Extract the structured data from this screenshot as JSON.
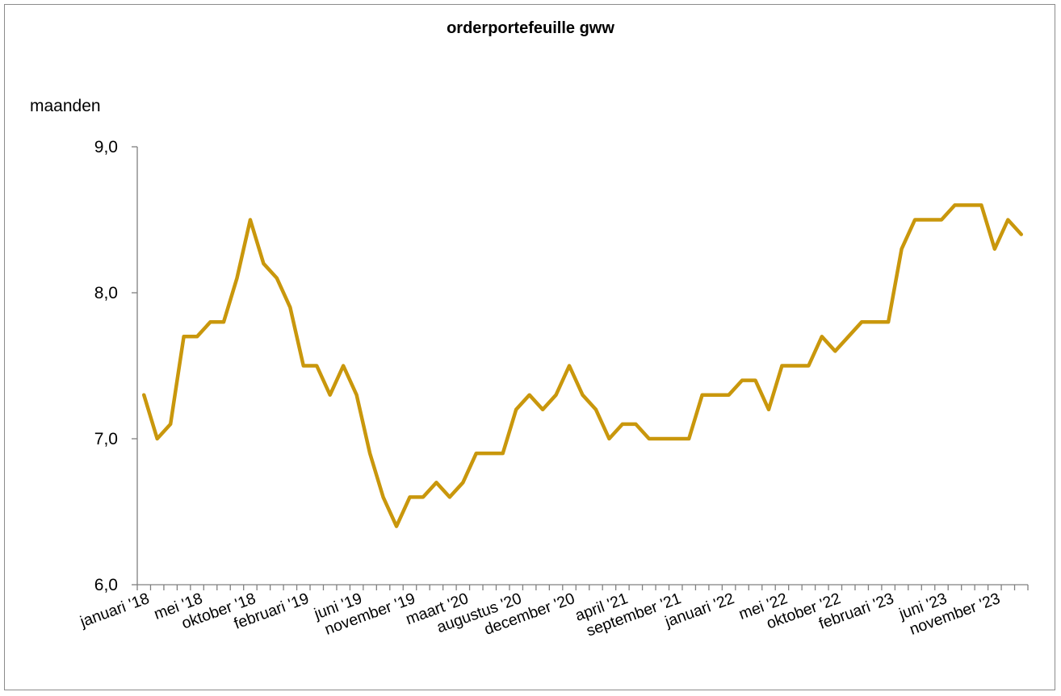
{
  "chart_data": {
    "type": "line",
    "title": "orderportefeuille gww",
    "ylabel": "maanden",
    "xlabel": "",
    "ylim": [
      6.0,
      9.0
    ],
    "yticks": [
      "6,0",
      "7,0",
      "8,0",
      "9,0"
    ],
    "ytick_values": [
      6.0,
      7.0,
      8.0,
      9.0
    ],
    "x_tick_labels": [
      "januari '18",
      "mei '18",
      "oktober '18",
      "februari '19",
      "juni '19",
      "november '19",
      "maart '20",
      "augustus '20",
      "december '20",
      "april '21",
      "september '21",
      "januari '22",
      "mei '22",
      "oktober '22",
      "februari '23",
      "juni '23",
      "november '23"
    ],
    "series": [
      {
        "color": "#C9970C",
        "values": [
          7.3,
          7.0,
          7.1,
          7.7,
          7.7,
          7.8,
          7.8,
          8.1,
          8.5,
          8.2,
          8.1,
          7.9,
          7.5,
          7.5,
          7.3,
          7.5,
          7.3,
          6.9,
          6.6,
          6.4,
          6.6,
          6.6,
          6.7,
          6.6,
          6.7,
          6.9,
          6.9,
          6.9,
          7.2,
          7.3,
          7.2,
          7.3,
          7.5,
          7.3,
          7.2,
          7.0,
          7.1,
          7.1,
          7.0,
          7.0,
          7.0,
          7.0,
          7.3,
          7.3,
          7.3,
          7.4,
          7.4,
          7.2,
          7.5,
          7.5,
          7.5,
          7.7,
          7.6,
          7.7,
          7.8,
          7.8,
          7.8,
          8.3,
          8.5,
          8.5,
          8.5,
          8.6,
          8.6,
          8.6,
          8.3,
          8.5,
          8.4
        ]
      }
    ],
    "grid": false,
    "legend": "none"
  }
}
